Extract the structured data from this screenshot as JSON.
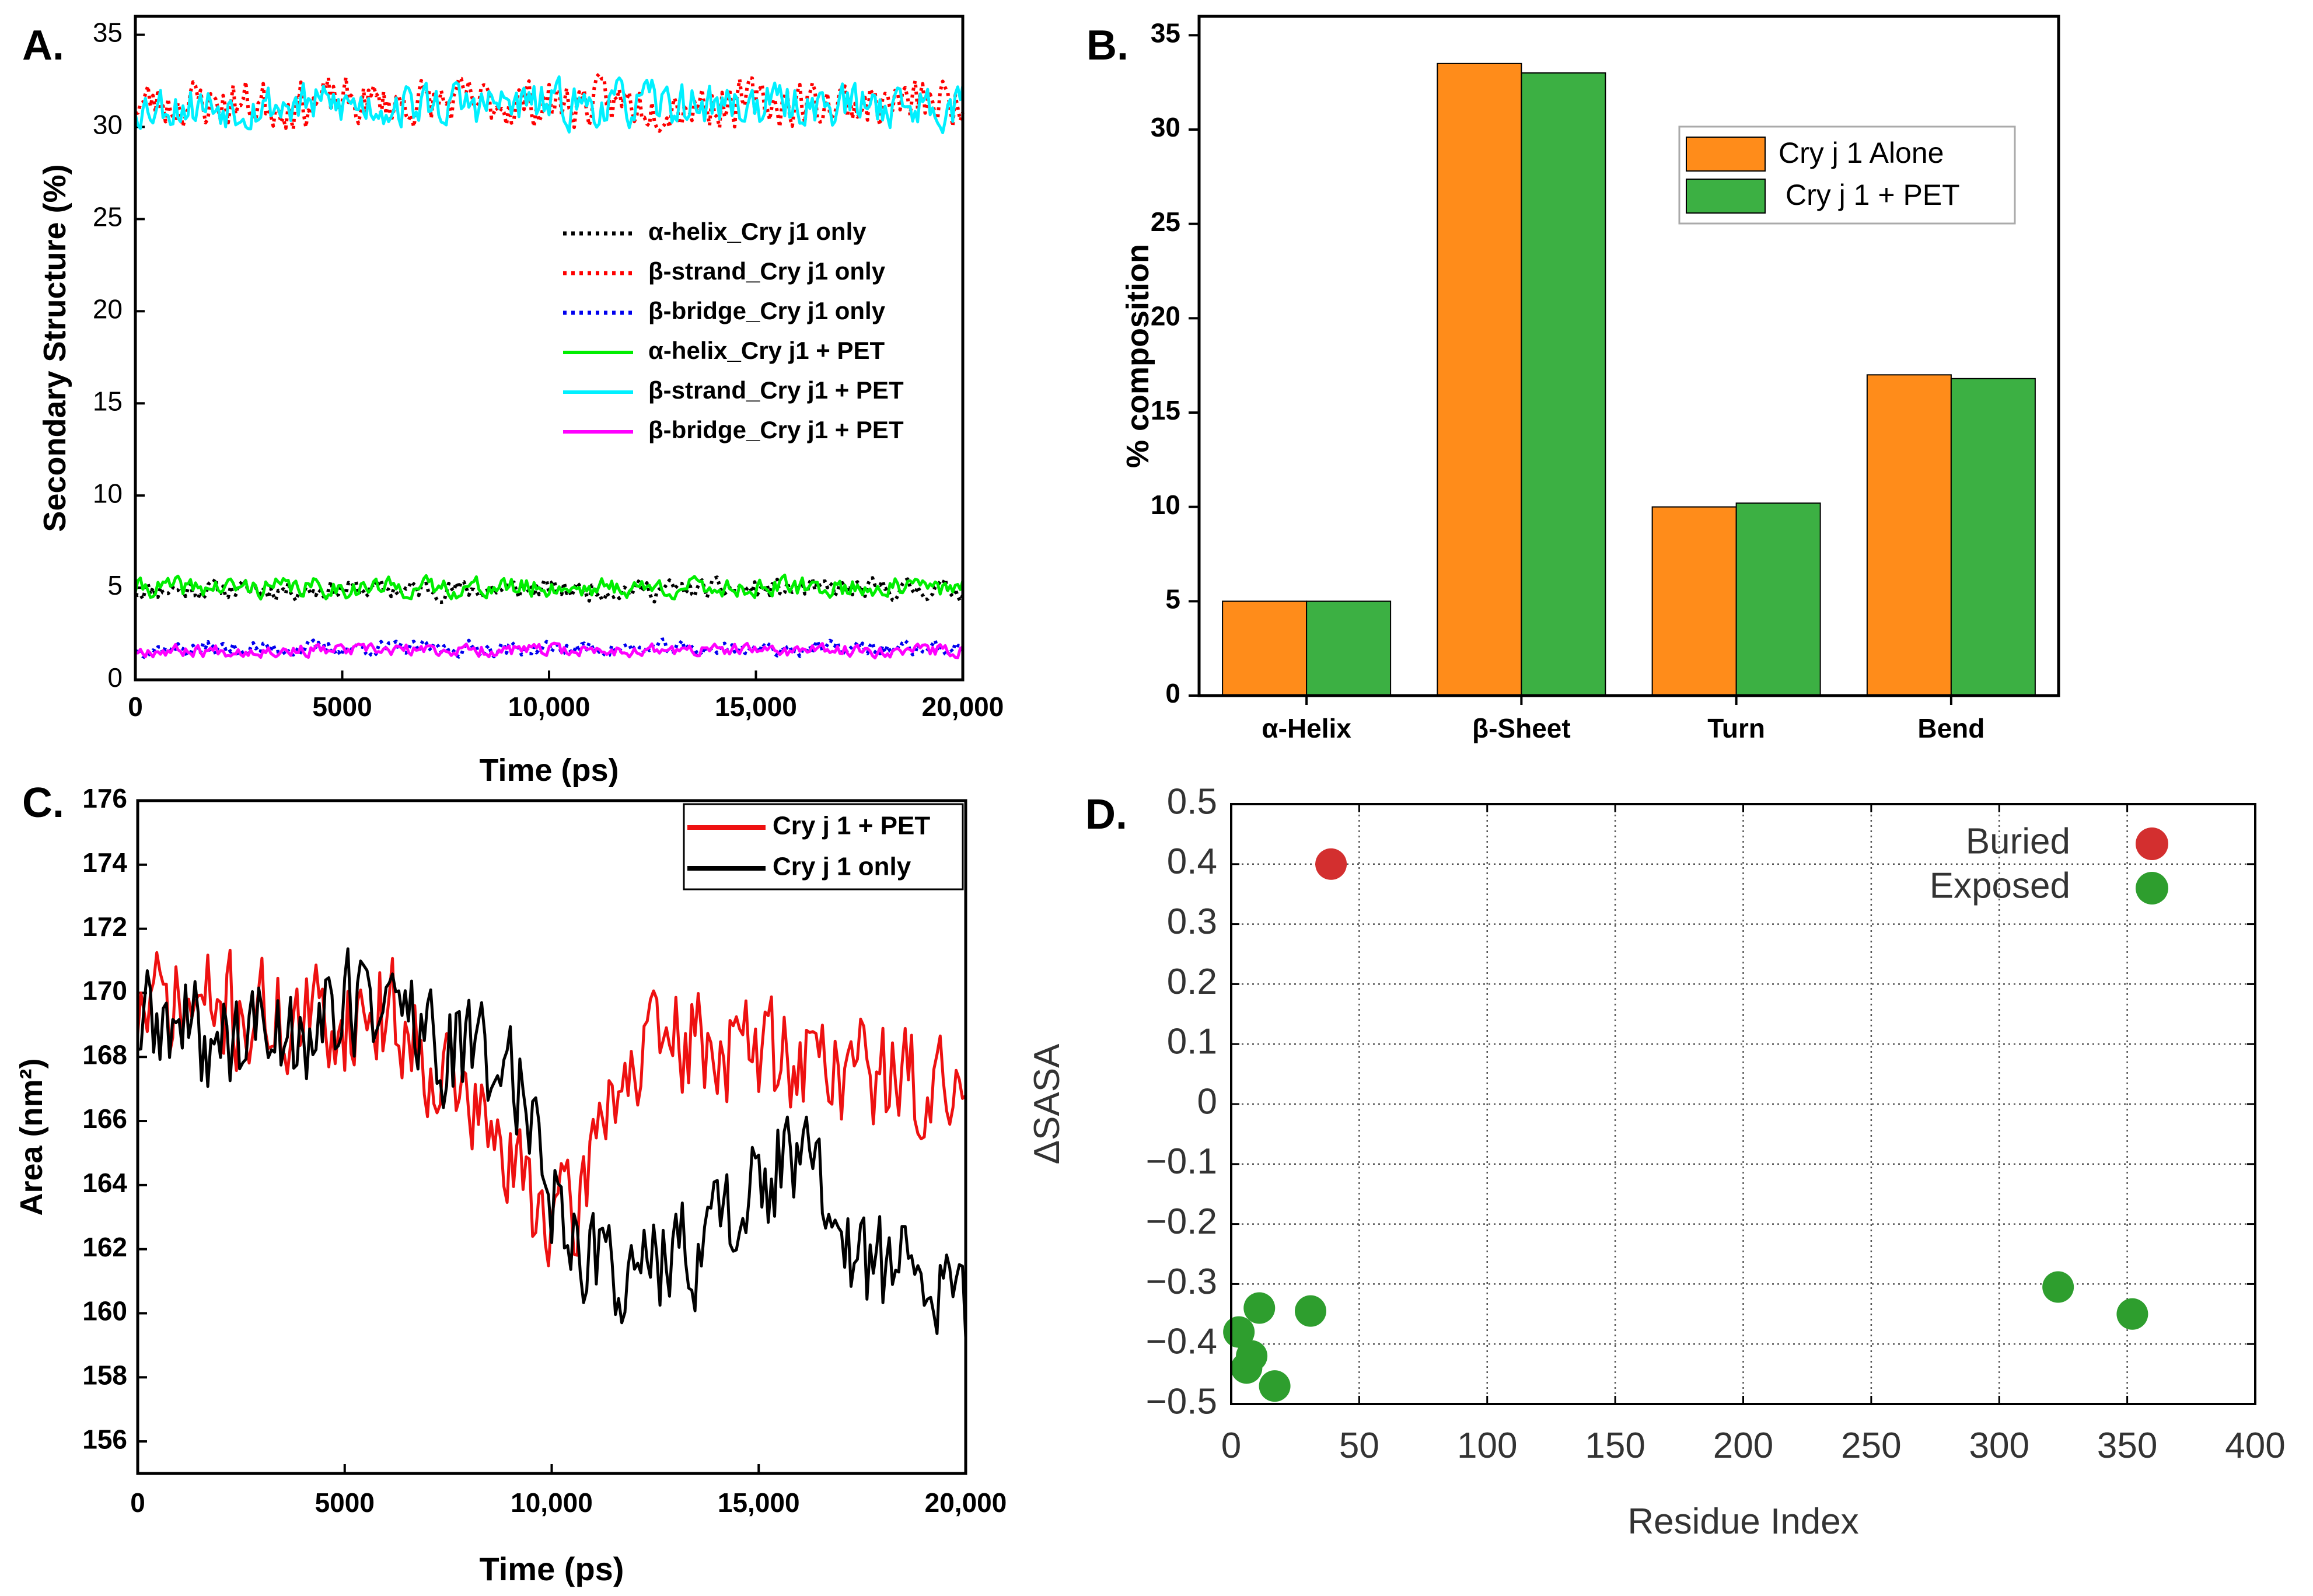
{
  "colors": {
    "black": "#000000",
    "red": "#ff0000",
    "blue": "#0000ee",
    "green": "#00ee00",
    "cyan": "#00f0ff",
    "magenta": "#ff00ff",
    "orange": "#ff8c1a",
    "barGreen": "#3cb043",
    "ptRed": "#d32f2f",
    "ptGreen": "#2e9e2e",
    "darkRed": "#ee1111"
  },
  "panel_labels": {
    "a": "A.",
    "b": "B.",
    "c": "C.",
    "d": "D."
  },
  "chart_data": [
    {
      "id": "A",
      "type": "line",
      "title": "",
      "xlabel": "Time (ps)",
      "ylabel": "Secondary Structure (%)",
      "xlim": [
        0,
        20000
      ],
      "ylim": [
        0,
        36
      ],
      "xticks": [
        0,
        5000,
        10000,
        15000,
        20000
      ],
      "xtick_labels": [
        "0",
        "5000",
        "10,000",
        "15,000",
        "20,000"
      ],
      "yticks": [
        0,
        5,
        10,
        15,
        20,
        25,
        30,
        35
      ],
      "ytick_labels": [
        "0",
        "5",
        "10",
        "15",
        "20",
        "25",
        "30",
        "35"
      ],
      "legend_position": "center-right",
      "series": [
        {
          "name": "α-helix_Cry j1 only",
          "key": "helix_only",
          "style": "dotted",
          "color": "black",
          "mean": 4.9,
          "amp": 0.8,
          "seed": 11
        },
        {
          "name": "β-strand_Cry j1 only",
          "key": "strand_only",
          "style": "dotted",
          "color": "red",
          "mean": 31.3,
          "amp": 1.9,
          "seed": 23
        },
        {
          "name": "β-bridge_Cry j1 only",
          "key": "bridge_only",
          "style": "dotted",
          "color": "blue",
          "mean": 1.7,
          "amp": 0.6,
          "seed": 37
        },
        {
          "name": "α-helix_Cry j1  +  PET",
          "key": "helix_pet",
          "style": "solid",
          "color": "green",
          "mean": 5.0,
          "amp": 0.8,
          "seed": 41
        },
        {
          "name": "β-strand_Cry j1  + PET",
          "key": "strand_pet",
          "style": "solid",
          "color": "cyan",
          "mean": 31.2,
          "amp": 1.8,
          "seed": 53
        },
        {
          "name": "β-bridge_Cry j1 + PET",
          "key": "bridge_pet",
          "style": "solid",
          "color": "magenta",
          "mean": 1.6,
          "amp": 0.5,
          "seed": 67
        }
      ]
    },
    {
      "id": "B",
      "type": "bar",
      "title": "",
      "xlabel": "",
      "ylabel": "% composition",
      "ylim": [
        0,
        36
      ],
      "yticks": [
        0,
        5,
        10,
        15,
        20,
        25,
        30,
        35
      ],
      "ytick_labels": [
        "0",
        "5",
        "10",
        "15",
        "20",
        "25",
        "30",
        "35"
      ],
      "categories": [
        "α-Helix",
        "β-Sheet",
        "Turn",
        "Bend"
      ],
      "legend_position": "top-right",
      "series": [
        {
          "name": "Cry j 1 Alone",
          "color": "orange",
          "values": [
            5.0,
            33.5,
            10.0,
            17.0
          ]
        },
        {
          "name": "Cry j 1 + PET",
          "color": "barGreen",
          "values": [
            5.0,
            33.0,
            10.2,
            16.8
          ]
        }
      ]
    },
    {
      "id": "C",
      "type": "line",
      "title": "",
      "xlabel": "Time (ps)",
      "ylabel": "Area (nm²)",
      "xlim": [
        0,
        20000
      ],
      "ylim": [
        155,
        176
      ],
      "xticks": [
        0,
        5000,
        10000,
        15000,
        20000
      ],
      "xtick_labels": [
        "0",
        "5000",
        "10,000",
        "15,000",
        "20,000"
      ],
      "yticks": [
        156,
        158,
        160,
        162,
        164,
        166,
        168,
        170,
        172,
        174,
        176
      ],
      "ytick_labels": [
        "156",
        "158",
        "160",
        "162",
        "164",
        "166",
        "168",
        "170",
        "172",
        "174",
        "176"
      ],
      "legend_position": "top-right",
      "series": [
        {
          "name": "Cry j 1 + PET",
          "key": "pet",
          "color": "darkRed",
          "trend": [
            [
              0,
              169.5
            ],
            [
              2000,
              169.5
            ],
            [
              4000,
              169.0
            ],
            [
              6000,
              169.5
            ],
            [
              7500,
              167.5
            ],
            [
              9000,
              164.5
            ],
            [
              10500,
              162.5
            ],
            [
              11300,
              167.0
            ],
            [
              13000,
              168.5
            ],
            [
              16000,
              168.0
            ],
            [
              18000,
              167.5
            ],
            [
              20000,
              166.5
            ]
          ],
          "amp": 1.6,
          "seed": 71
        },
        {
          "name": "Cry j 1 only",
          "key": "only",
          "color": "black",
          "trend": [
            [
              0,
              169.0
            ],
            [
              2000,
              168.5
            ],
            [
              4000,
              169.0
            ],
            [
              6000,
              170.0
            ],
            [
              7500,
              168.0
            ],
            [
              9000,
              168.0
            ],
            [
              10000,
              164.0
            ],
            [
              11000,
              161.5
            ],
            [
              13000,
              161.5
            ],
            [
              14500,
              163.5
            ],
            [
              16000,
              165.0
            ],
            [
              17000,
              162.0
            ],
            [
              19000,
              161.0
            ],
            [
              20000,
              160.0
            ]
          ],
          "amp": 1.6,
          "seed": 89
        }
      ]
    },
    {
      "id": "D",
      "type": "scatter",
      "title": "",
      "xlabel": "Residue Index",
      "ylabel": "ΔSASA",
      "xlim": [
        0,
        400
      ],
      "ylim": [
        -0.5,
        0.5
      ],
      "xticks": [
        0,
        50,
        100,
        150,
        200,
        250,
        300,
        350,
        400
      ],
      "xtick_labels": [
        "0",
        "50",
        "100",
        "150",
        "200",
        "250",
        "300",
        "350",
        "400"
      ],
      "yticks": [
        -0.5,
        -0.4,
        -0.3,
        -0.2,
        -0.1,
        0,
        0.1,
        0.2,
        0.3,
        0.4,
        0.5
      ],
      "ytick_labels": [
        "−0.5",
        "−0.4",
        "−0.3",
        "−0.2",
        "−0.1",
        "0",
        "0.1",
        "0.2",
        "0.3",
        "0.4",
        "0.5"
      ],
      "grid": true,
      "legend_position": "top-right",
      "series": [
        {
          "name": "Buried",
          "color": "ptRed",
          "points": [
            [
              39,
              0.4
            ]
          ]
        },
        {
          "name": "Exposed",
          "color": "ptGreen",
          "points": [
            [
              3,
              -0.38
            ],
            [
              6,
              -0.44
            ],
            [
              8,
              -0.42
            ],
            [
              11,
              -0.34
            ],
            [
              17,
              -0.47
            ],
            [
              31,
              -0.345
            ],
            [
              323,
              -0.305
            ],
            [
              352,
              -0.35
            ]
          ]
        }
      ]
    }
  ]
}
